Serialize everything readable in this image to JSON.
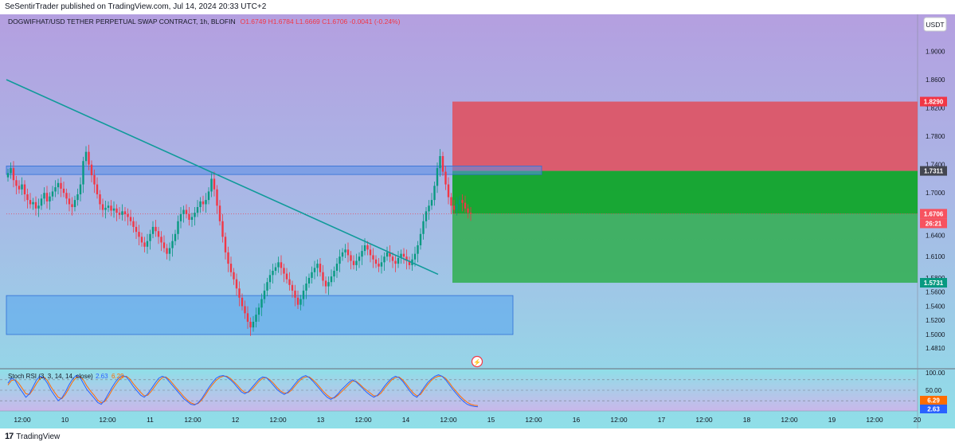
{
  "publisher_line": "SeSentirTrader published on TradingView.com, Jul 14, 2024 20:33 UTC+2",
  "brand": {
    "mark": "17",
    "name": "TradingView"
  },
  "legend": {
    "symbol": "DOGWIFHAT/USD TETHER PERPETUAL SWAP CONTRACT, 1h, BLOFIN",
    "ohlc": "O1.6749  H1.6784  L1.6669  C1.6706  -0.0041 (-0.24%)"
  },
  "currency_button": "USDT",
  "price_axis": {
    "ticks": [
      "1.9000",
      "1.8600",
      "1.8200",
      "1.7800",
      "1.7400",
      "1.7000",
      "1.6400",
      "1.6100",
      "1.5800",
      "1.5600",
      "1.5400",
      "1.5200",
      "1.5000",
      "1.4810"
    ],
    "badges": [
      {
        "label": "1.8290",
        "price": 1.829,
        "bg": "#f23645",
        "fg": "#ffffff"
      },
      {
        "label": "1.7311",
        "price": 1.7311,
        "bg": "#434651",
        "fg": "#ffffff"
      },
      {
        "label": "1.6706",
        "price": 1.6706,
        "bg": "#f7525f",
        "fg": "#ffffff"
      },
      {
        "label": "26:21",
        "price": 1.657,
        "bg": "#f7525f",
        "fg": "#ffffff"
      },
      {
        "label": "1.5731",
        "price": 1.5731,
        "bg": "#089981",
        "fg": "#ffffff"
      }
    ]
  },
  "time_axis": [
    "12:00",
    "10",
    "12:00",
    "11",
    "12:00",
    "12",
    "12:00",
    "13",
    "12:00",
    "14",
    "12:00",
    "15",
    "12:00",
    "16",
    "12:00",
    "17",
    "12:00",
    "18",
    "12:00",
    "19",
    "12:00",
    "20"
  ],
  "rsi": {
    "label": "Stoch RSI (3, 3, 14, 14, close)",
    "k_value": "2.63",
    "d_value": "6.29",
    "axis": [
      "100.00",
      "50.00"
    ],
    "badges": [
      {
        "label": "6.29",
        "bg": "#ff6d00"
      },
      {
        "label": "2.63",
        "bg": "#2962ff"
      }
    ]
  },
  "chart_data": {
    "type": "candlestick",
    "symbol": "DOGWIFHAT/USD TETHER PERPETUAL SWAP CONTRACT",
    "interval": "1h",
    "exchange": "BLOFIN",
    "last": {
      "open": 1.6749,
      "high": 1.6784,
      "low": 1.6669,
      "close": 1.6706,
      "change": -0.0041,
      "change_pct": -0.24
    },
    "closes": [
      1.728,
      1.735,
      1.718,
      1.71,
      1.705,
      1.712,
      1.698,
      1.69,
      1.684,
      1.687,
      1.678,
      1.682,
      1.692,
      1.7,
      1.688,
      1.695,
      1.702,
      1.708,
      1.714,
      1.706,
      1.7,
      1.692,
      1.684,
      1.68,
      1.69,
      1.698,
      1.712,
      1.745,
      1.758,
      1.74,
      1.725,
      1.712,
      1.698,
      1.684,
      1.676,
      1.679,
      1.682,
      1.675,
      1.678,
      1.672,
      1.669,
      1.674,
      1.67,
      1.666,
      1.66,
      1.652,
      1.645,
      1.638,
      1.63,
      1.624,
      1.632,
      1.642,
      1.652,
      1.646,
      1.638,
      1.63,
      1.622,
      1.614,
      1.622,
      1.632,
      1.642,
      1.66,
      1.67,
      1.676,
      1.67,
      1.662,
      1.666,
      1.672,
      1.68,
      1.688,
      1.684,
      1.69,
      1.702,
      1.72,
      1.705,
      1.682,
      1.66,
      1.638,
      1.616,
      1.6,
      1.588,
      1.578,
      1.565,
      1.552,
      1.54,
      1.53,
      1.518,
      1.51,
      1.518,
      1.528,
      1.538,
      1.55,
      1.562,
      1.574,
      1.584,
      1.59,
      1.595,
      1.602,
      1.594,
      1.586,
      1.578,
      1.57,
      1.562,
      1.552,
      1.542,
      1.55,
      1.562,
      1.572,
      1.58,
      1.588,
      1.594,
      1.6,
      1.588,
      1.576,
      1.568,
      1.574,
      1.582,
      1.59,
      1.6,
      1.61,
      1.616,
      1.62,
      1.612,
      1.604,
      1.598,
      1.604,
      1.61,
      1.618,
      1.626,
      1.62,
      1.612,
      1.606,
      1.6,
      1.596,
      1.602,
      1.61,
      1.616,
      1.61,
      1.604,
      1.6,
      1.608,
      1.614,
      1.61,
      1.604,
      1.598,
      1.606,
      1.614,
      1.626,
      1.642,
      1.66,
      1.674,
      1.682,
      1.69,
      1.71,
      1.735,
      1.752,
      1.73,
      1.712,
      1.694,
      1.682,
      1.676,
      1.684,
      1.69,
      1.686,
      1.678,
      1.672,
      1.6706
    ],
    "drawings": {
      "trendline": {
        "from_price": 1.86,
        "to_price": 1.585
      },
      "supply_zone": {
        "top": 1.738,
        "bottom": 1.726
      },
      "demand_zone": {
        "top": 1.555,
        "bottom": 1.5
      },
      "position": {
        "stop": 1.829,
        "entry": 1.7311,
        "current": 1.6706,
        "target": 1.5731
      }
    },
    "stoch_rsi": {
      "k": [
        70,
        85,
        78,
        60,
        45,
        30,
        40,
        60,
        80,
        90,
        85,
        70,
        50,
        35,
        20,
        28,
        45,
        65,
        82,
        92,
        88,
        70,
        52,
        40,
        28,
        15,
        10,
        22,
        40,
        58,
        74,
        86,
        92,
        88,
        75,
        60,
        48,
        36,
        30,
        40,
        55,
        70,
        84,
        90,
        86,
        74,
        62,
        50,
        38,
        26,
        18,
        10,
        8,
        14,
        26,
        42,
        58,
        72,
        84,
        90,
        92,
        88,
        80,
        70,
        58,
        46,
        40,
        46,
        58,
        70,
        82,
        88,
        86,
        76,
        64,
        52,
        44,
        38,
        44,
        55,
        68,
        80,
        88,
        92,
        86,
        76,
        64,
        52,
        40,
        30,
        24,
        30,
        40,
        52,
        62,
        72,
        80,
        74,
        64,
        54,
        44,
        36,
        30,
        36,
        48,
        62,
        74,
        84,
        90,
        86,
        76,
        62,
        48,
        36,
        30,
        42,
        58,
        72,
        82,
        90,
        94,
        90,
        80,
        66,
        52,
        40,
        28,
        18,
        10,
        6,
        4,
        2.63
      ],
      "d": [
        65,
        78,
        80,
        70,
        55,
        40,
        38,
        52,
        70,
        84,
        88,
        78,
        60,
        44,
        30,
        26,
        38,
        56,
        74,
        86,
        90,
        80,
        62,
        48,
        36,
        22,
        14,
        18,
        32,
        50,
        66,
        80,
        88,
        90,
        82,
        68,
        56,
        44,
        34,
        36,
        48,
        62,
        76,
        86,
        88,
        80,
        68,
        56,
        44,
        32,
        22,
        14,
        10,
        12,
        22,
        36,
        52,
        66,
        78,
        86,
        90,
        90,
        84,
        74,
        64,
        52,
        44,
        44,
        52,
        64,
        76,
        84,
        86,
        80,
        70,
        58,
        48,
        42,
        42,
        50,
        62,
        74,
        84,
        88,
        88,
        80,
        70,
        58,
        46,
        36,
        28,
        28,
        36,
        46,
        56,
        66,
        76,
        76,
        68,
        58,
        50,
        42,
        34,
        34,
        42,
        56,
        68,
        80,
        86,
        88,
        80,
        68,
        54,
        42,
        34,
        38,
        52,
        66,
        78,
        86,
        90,
        90,
        84,
        72,
        58,
        46,
        34,
        24,
        16,
        10,
        7,
        6.29
      ],
      "levels": [
        100,
        80,
        50,
        20,
        0
      ]
    }
  }
}
